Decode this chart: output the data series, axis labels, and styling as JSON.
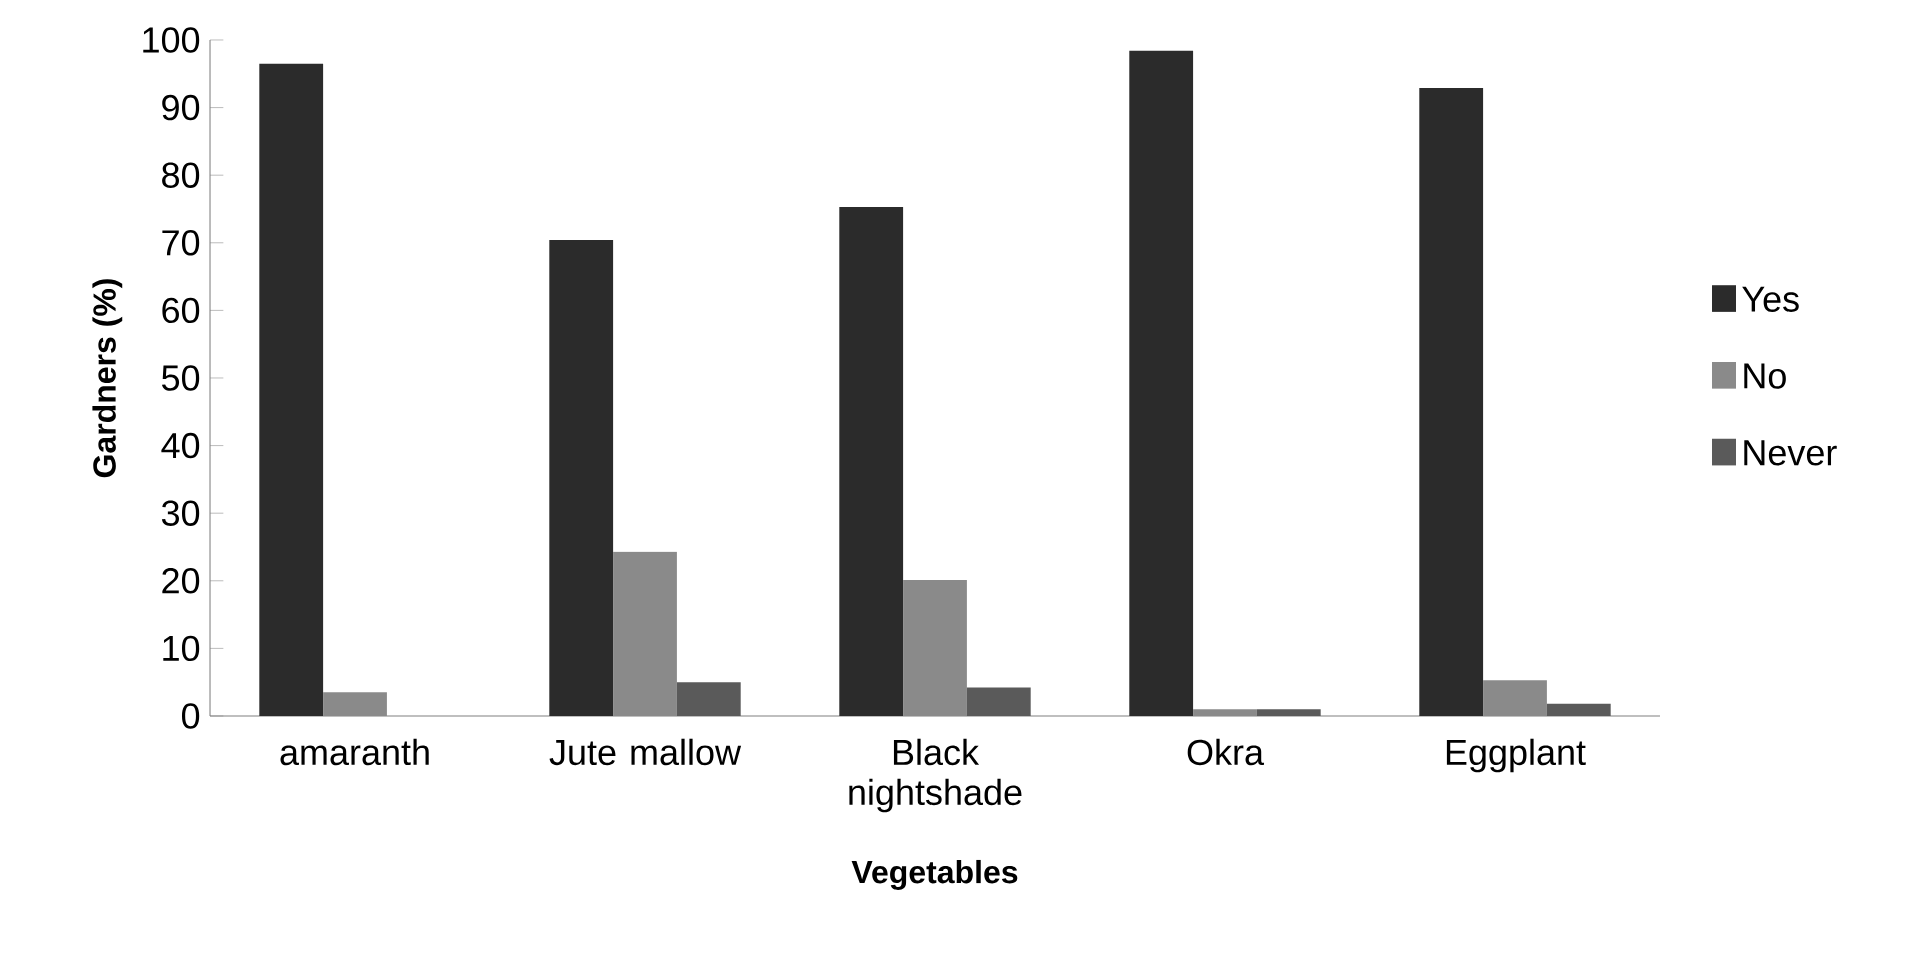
{
  "chart_data": {
    "type": "bar",
    "xlabel": "Vegetables",
    "ylabel": "Gardners (%)",
    "categories": [
      "amaranth",
      "Jute mallow",
      "Black nightshade",
      "Okra",
      "Eggplant"
    ],
    "series": [
      {
        "name": "Yes",
        "color": "#2b2b2b",
        "values": [
          96.5,
          70.4,
          75.3,
          98.4,
          92.9
        ]
      },
      {
        "name": "No",
        "color": "#8a8a8a",
        "values": [
          3.5,
          24.3,
          20.1,
          1,
          5.3
        ]
      },
      {
        "name": "Never",
        "color": "#5a5a5a",
        "values": [
          0,
          5,
          4.2,
          1,
          1.8
        ]
      }
    ],
    "ylim": [
      0,
      100
    ],
    "yticks": [
      0,
      10,
      20,
      30,
      40,
      50,
      60,
      70,
      80,
      90,
      100
    ],
    "grid": false,
    "legend": "right"
  }
}
